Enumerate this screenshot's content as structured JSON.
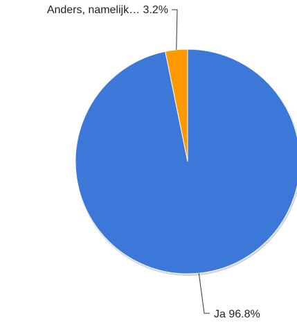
{
  "chart_data": {
    "type": "pie",
    "title": "",
    "slices": [
      {
        "label": "Anders, namelijk…",
        "percent_label": "3.2%",
        "value": 3.2,
        "color": "#ff9900"
      },
      {
        "label": "Ja",
        "percent_label": "96.8%",
        "value": 96.8,
        "color": "#3c78d8"
      }
    ],
    "slice_labels": [
      "Anders, namelijk… 3.2%",
      "Ja 96.8%"
    ],
    "start_angle": "12 o'clock",
    "direction": "counter-clockwise"
  }
}
